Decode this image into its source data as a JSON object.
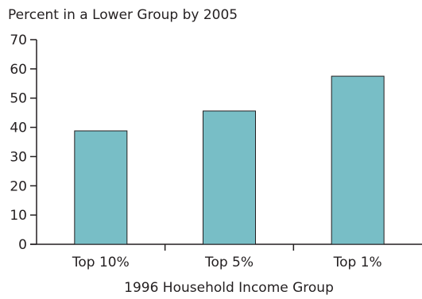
{
  "chart_data": {
    "type": "bar",
    "title": "Percent in a Lower Group by 2005",
    "xlabel": "1996 Household Income Group",
    "ylabel": "",
    "categories": [
      "Top 10%",
      "Top 5%",
      "Top 1%"
    ],
    "values": [
      38.8,
      45.6,
      57.5
    ],
    "ylim": [
      0,
      70
    ],
    "yticks": [
      "0",
      "10",
      "20",
      "30",
      "40",
      "50",
      "60",
      "70"
    ],
    "grid": false,
    "legend": "none",
    "bar_color": "#78bec6",
    "bar_outline": "#231f20",
    "axis_color": "#231f20"
  }
}
